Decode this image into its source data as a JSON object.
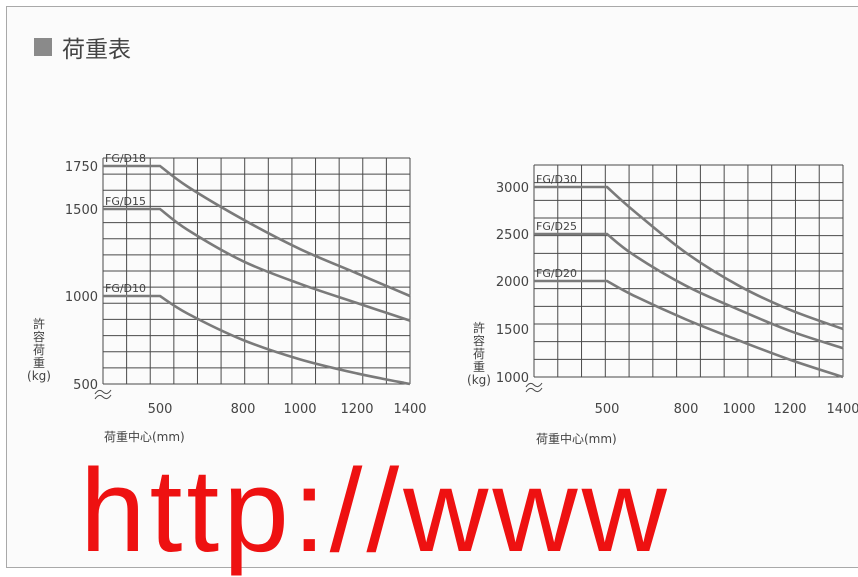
{
  "heading": "荷重表",
  "watermark": "http://www",
  "chart_data": [
    {
      "type": "line",
      "xlabel": "荷重中心(mm)",
      "ylabel": "許容荷重(kg)",
      "x_ticks": [
        500,
        800,
        1000,
        1200,
        1400
      ],
      "y_ticks": [
        500,
        1000,
        1500,
        1750
      ],
      "xlim": [
        300,
        1400
      ],
      "ylim": [
        500,
        1750
      ],
      "series": [
        {
          "name": "FG/D18",
          "points": [
            [
              300,
              1750
            ],
            [
              500,
              1750
            ],
            [
              600,
              1630
            ],
            [
              800,
              1440
            ],
            [
              1000,
              1270
            ],
            [
              1200,
              1130
            ],
            [
              1400,
              1000
            ]
          ]
        },
        {
          "name": "FG/D15",
          "points": [
            [
              300,
              1500
            ],
            [
              500,
              1500
            ],
            [
              600,
              1380
            ],
            [
              800,
              1200
            ],
            [
              1000,
              1070
            ],
            [
              1200,
              960
            ],
            [
              1400,
              860
            ]
          ]
        },
        {
          "name": "FG/D10",
          "points": [
            [
              300,
              1000
            ],
            [
              500,
              1000
            ],
            [
              600,
              900
            ],
            [
              800,
              750
            ],
            [
              1000,
              640
            ],
            [
              1200,
              560
            ],
            [
              1400,
              500
            ]
          ]
        }
      ]
    },
    {
      "type": "line",
      "xlabel": "荷重中心(mm)",
      "ylabel": "許容荷重(kg)",
      "x_ticks": [
        500,
        800,
        1000,
        1200,
        1400
      ],
      "y_ticks": [
        1000,
        1500,
        2000,
        2500,
        3000
      ],
      "xlim": [
        300,
        1400
      ],
      "ylim": [
        1000,
        3000
      ],
      "series": [
        {
          "name": "FG/D30",
          "points": [
            [
              300,
              3000
            ],
            [
              500,
              3000
            ],
            [
              600,
              2750
            ],
            [
              800,
              2300
            ],
            [
              1000,
              1950
            ],
            [
              1200,
              1700
            ],
            [
              1400,
              1500
            ]
          ]
        },
        {
          "name": "FG/D25",
          "points": [
            [
              300,
              2500
            ],
            [
              500,
              2500
            ],
            [
              600,
              2280
            ],
            [
              800,
              1950
            ],
            [
              1000,
              1700
            ],
            [
              1200,
              1480
            ],
            [
              1400,
              1300
            ]
          ]
        },
        {
          "name": "FG/D20",
          "points": [
            [
              300,
              2000
            ],
            [
              500,
              2000
            ],
            [
              600,
              1850
            ],
            [
              800,
              1600
            ],
            [
              1000,
              1380
            ],
            [
              1200,
              1180
            ],
            [
              1400,
              1000
            ]
          ]
        }
      ]
    }
  ]
}
